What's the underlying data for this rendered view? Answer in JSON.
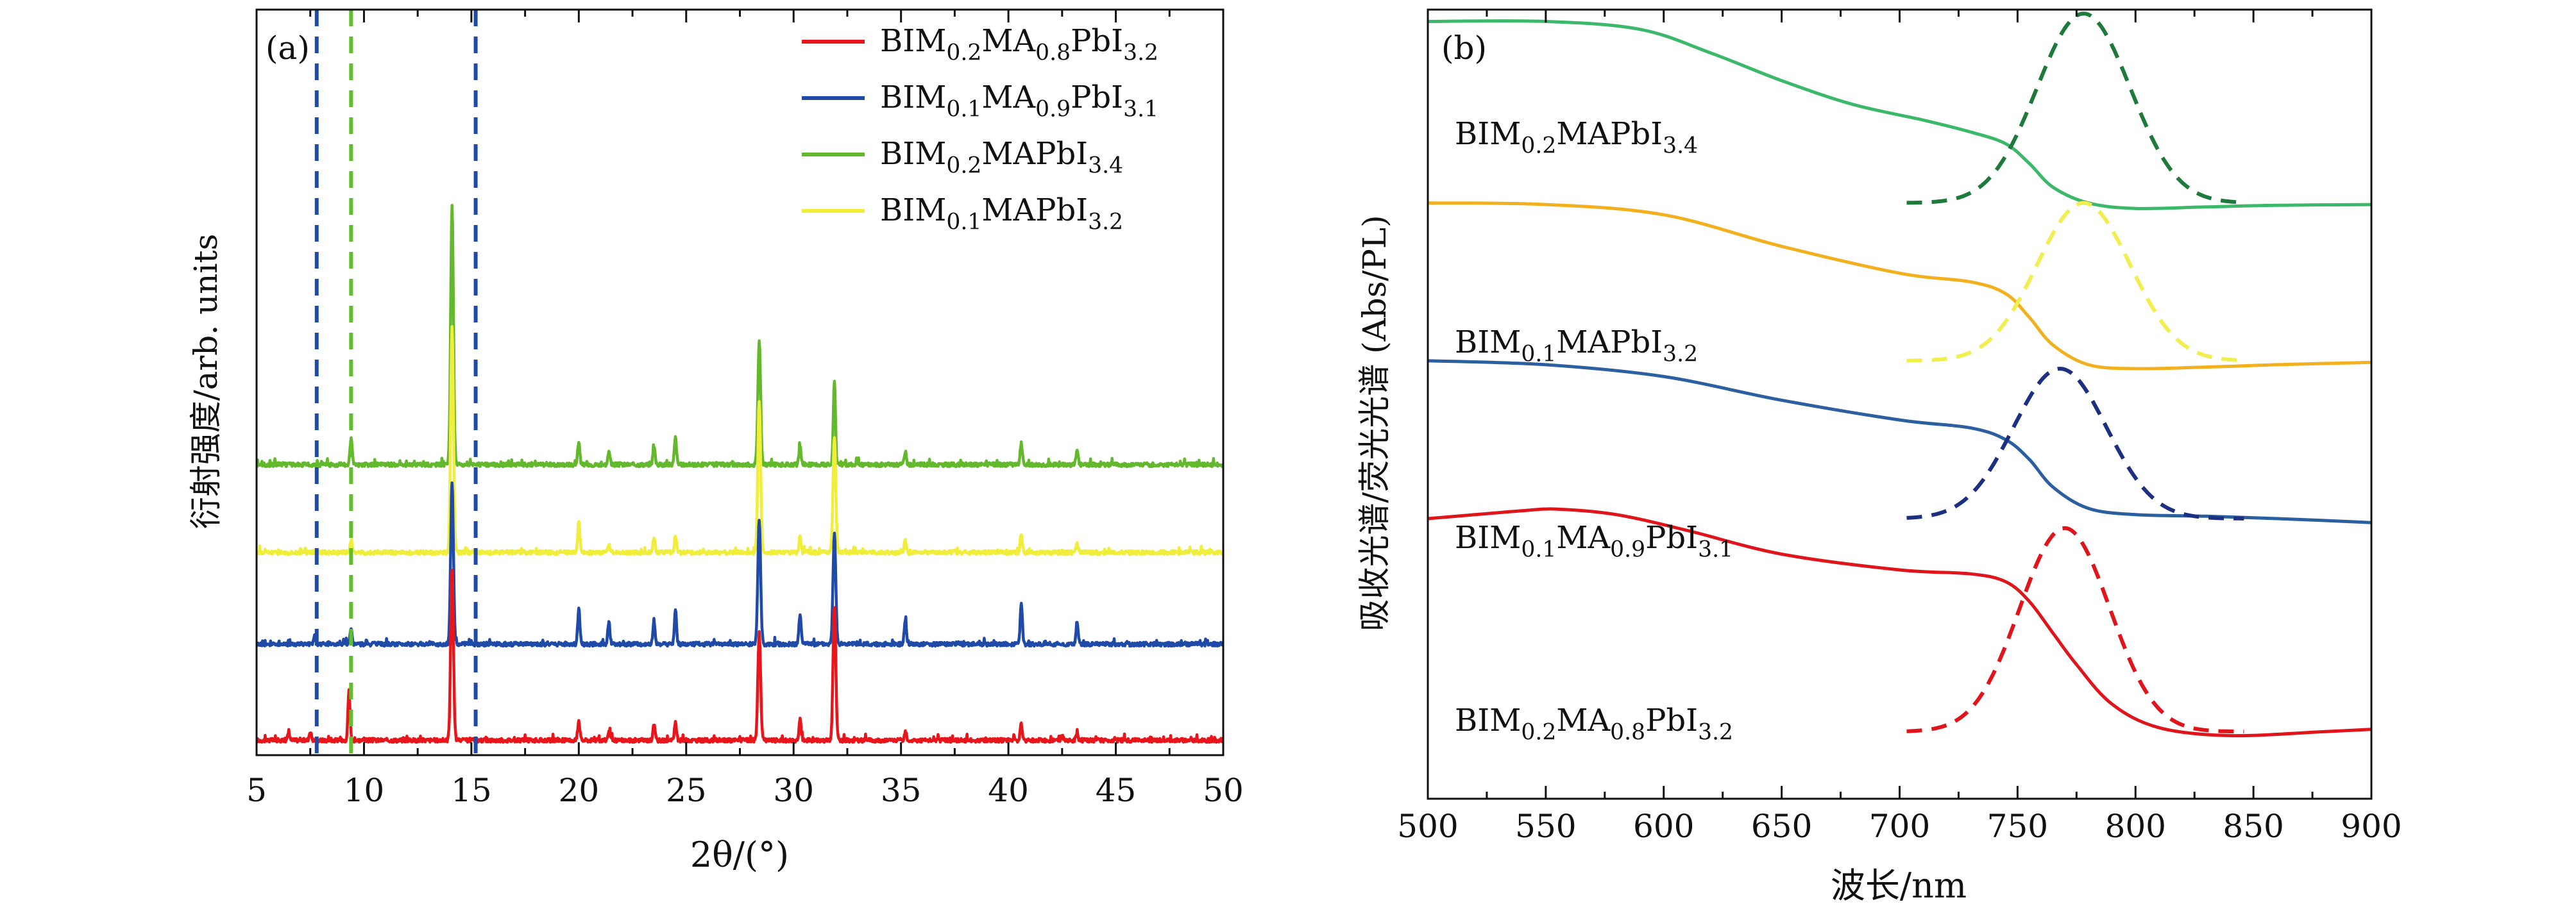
{
  "chart_data": [
    {
      "panel": "(a)",
      "type": "line",
      "xlabel": "2θ/(°)",
      "ylabel": "衍射强度/arb. units",
      "xlim": [
        5,
        50
      ],
      "xticks": [
        5,
        10,
        15,
        20,
        25,
        30,
        35,
        40,
        45,
        50
      ],
      "y_ticks_shown": false,
      "legend_position": "top-right",
      "reference_lines": [
        {
          "x": 7.8,
          "color": "#1f4aa8",
          "style": "dashed"
        },
        {
          "x": 9.4,
          "color": "#5fbf2a",
          "style": "dashed"
        },
        {
          "x": 15.2,
          "color": "#1f4aa8",
          "style": "dashed"
        }
      ],
      "series": [
        {
          "name": "BIM0.2MA0.8PbI3.2",
          "legend_base": "BIM",
          "legend_subs": [
            "0.2",
            "MA",
            "0.8",
            "PbI",
            "3.2"
          ],
          "color": "#e8161b",
          "stack_order": 0,
          "peaks": [
            [
              6.5,
              0.08
            ],
            [
              7.5,
              0.1
            ],
            [
              9.3,
              0.55
            ],
            [
              14.1,
              1.9
            ],
            [
              20.0,
              0.22
            ],
            [
              21.4,
              0.1
            ],
            [
              23.5,
              0.17
            ],
            [
              24.5,
              0.19
            ],
            [
              28.4,
              1.2
            ],
            [
              30.3,
              0.25
            ],
            [
              31.9,
              1.5
            ],
            [
              35.2,
              0.1
            ],
            [
              40.6,
              0.18
            ],
            [
              42.5,
              0.05
            ],
            [
              43.2,
              0.06
            ]
          ]
        },
        {
          "name": "BIM0.1MA0.9PbI3.1",
          "legend_base": "BIM",
          "legend_subs": [
            "0.1",
            "MA",
            "0.9",
            "PbI",
            "3.1"
          ],
          "color": "#1f4aa8",
          "stack_order": 1,
          "peaks": [
            [
              7.7,
              0.09
            ],
            [
              9.4,
              0.16
            ],
            [
              14.1,
              1.8
            ],
            [
              20.0,
              0.4
            ],
            [
              21.4,
              0.25
            ],
            [
              23.5,
              0.27
            ],
            [
              24.5,
              0.38
            ],
            [
              28.4,
              1.4
            ],
            [
              30.3,
              0.34
            ],
            [
              31.9,
              1.25
            ],
            [
              35.2,
              0.28
            ],
            [
              40.6,
              0.45
            ],
            [
              43.2,
              0.25
            ]
          ]
        },
        {
          "name": "BIM0.2MAPbI3.4",
          "legend_base": "BIM",
          "legend_subs": [
            "0.2",
            "MAPbI",
            "3.4"
          ],
          "color": "#64b82e",
          "stack_order": 3,
          "peaks": [
            [
              9.4,
              0.28
            ],
            [
              14.1,
              2.9
            ],
            [
              20.0,
              0.26
            ],
            [
              21.4,
              0.14
            ],
            [
              23.5,
              0.2
            ],
            [
              24.5,
              0.3
            ],
            [
              28.4,
              1.38
            ],
            [
              30.3,
              0.2
            ],
            [
              31.9,
              0.95
            ],
            [
              35.2,
              0.15
            ],
            [
              40.6,
              0.24
            ],
            [
              43.2,
              0.18
            ]
          ]
        },
        {
          "name": "BIM0.1MAPbI3.2",
          "legend_base": "BIM",
          "legend_subs": [
            "0.1",
            "MAPbI",
            "3.2"
          ],
          "color": "#f0ee3a",
          "stack_order": 2,
          "peaks": [
            [
              9.4,
              0.14
            ],
            [
              14.1,
              2.5
            ],
            [
              20.0,
              0.34
            ],
            [
              21.4,
              0.08
            ],
            [
              23.5,
              0.16
            ],
            [
              24.5,
              0.18
            ],
            [
              28.4,
              1.7
            ],
            [
              30.3,
              0.17
            ],
            [
              31.9,
              1.3
            ],
            [
              35.2,
              0.14
            ],
            [
              40.6,
              0.22
            ],
            [
              43.2,
              0.09
            ]
          ]
        }
      ]
    },
    {
      "panel": "(b)",
      "type": "line",
      "xlabel": "波长/nm",
      "ylabel": "吸收光谱/荧光光谱 (Abs/PL)",
      "xlim": [
        500,
        900
      ],
      "xticks": [
        500,
        550,
        600,
        650,
        700,
        750,
        800,
        850,
        900
      ],
      "y_ticks_shown": false,
      "series": [
        {
          "name": "BIM0.2MAPbI3.4",
          "label_base": "BIM",
          "label_subs": [
            "0.2",
            "MAPbI",
            "3.4"
          ],
          "color": "#3cb86a",
          "pl_color": "#1d7a3a",
          "abs": {
            "x": [
              500,
              550,
              590,
              620,
              650,
              680,
              710,
              730,
              745,
              755,
              765,
              780,
              800,
              830,
              860,
              900
            ],
            "y": [
              0.985,
              0.985,
              0.975,
              0.945,
              0.91,
              0.88,
              0.86,
              0.845,
              0.83,
              0.805,
              0.775,
              0.755,
              0.748,
              0.75,
              0.752,
              0.753
            ]
          },
          "pl": {
            "center": 778,
            "width": 28,
            "start": 703,
            "end": 846,
            "peak_y": 0.995,
            "base_y": 0.755
          }
        },
        {
          "name": "BIM0.1MAPbI3.2",
          "label_base": "BIM",
          "label_subs": [
            "0.1",
            "MAPbI",
            "3.2"
          ],
          "color": "#f2b01e",
          "pl_color": "#f1ef50",
          "abs": {
            "x": [
              500,
              550,
              600,
              650,
              700,
              730,
              745,
              755,
              765,
              780,
              800,
              830,
              860,
              900
            ],
            "y": [
              0.755,
              0.753,
              0.74,
              0.7,
              0.666,
              0.655,
              0.64,
              0.61,
              0.575,
              0.55,
              0.545,
              0.547,
              0.55,
              0.553
            ]
          },
          "pl": {
            "center": 778,
            "width": 28,
            "start": 703,
            "end": 846,
            "peak_y": 0.755,
            "base_y": 0.555
          }
        },
        {
          "name": "BIM0.1MA0.9PbI3.1",
          "label_base": "BIM",
          "label_subs": [
            "0.1",
            "MA",
            "0.9",
            "PbI",
            "3.1"
          ],
          "color": "#2b5fa0",
          "pl_color": "#1c2f80",
          "abs": {
            "x": [
              500,
              550,
              600,
              650,
              700,
              730,
              745,
              755,
              765,
              780,
              800,
              830,
              860,
              900
            ],
            "y": [
              0.555,
              0.55,
              0.535,
              0.505,
              0.48,
              0.47,
              0.455,
              0.43,
              0.395,
              0.368,
              0.36,
              0.358,
              0.355,
              0.35
            ]
          },
          "pl": {
            "center": 768,
            "width": 28,
            "start": 703,
            "end": 846,
            "peak_y": 0.545,
            "base_y": 0.355
          }
        },
        {
          "name": "BIM0.2MA0.8PbI3.2",
          "label_base": "BIM",
          "label_subs": [
            "0.2",
            "MA",
            "0.8",
            "PbI",
            "3.2"
          ],
          "color": "#e0141b",
          "pl_color": "#e0141b",
          "abs": {
            "x": [
              500,
              520,
              540,
              555,
              580,
              610,
              650,
              700,
              730,
              745,
              755,
              765,
              775,
              790,
              810,
              840,
              880,
              900
            ],
            "y": [
              0.355,
              0.36,
              0.365,
              0.367,
              0.36,
              0.34,
              0.31,
              0.29,
              0.285,
              0.275,
              0.25,
              0.21,
              0.17,
              0.12,
              0.09,
              0.08,
              0.085,
              0.088
            ]
          },
          "pl": {
            "center": 770,
            "width": 27,
            "start": 703,
            "end": 846,
            "peak_y": 0.343,
            "base_y": 0.085
          }
        }
      ]
    }
  ]
}
